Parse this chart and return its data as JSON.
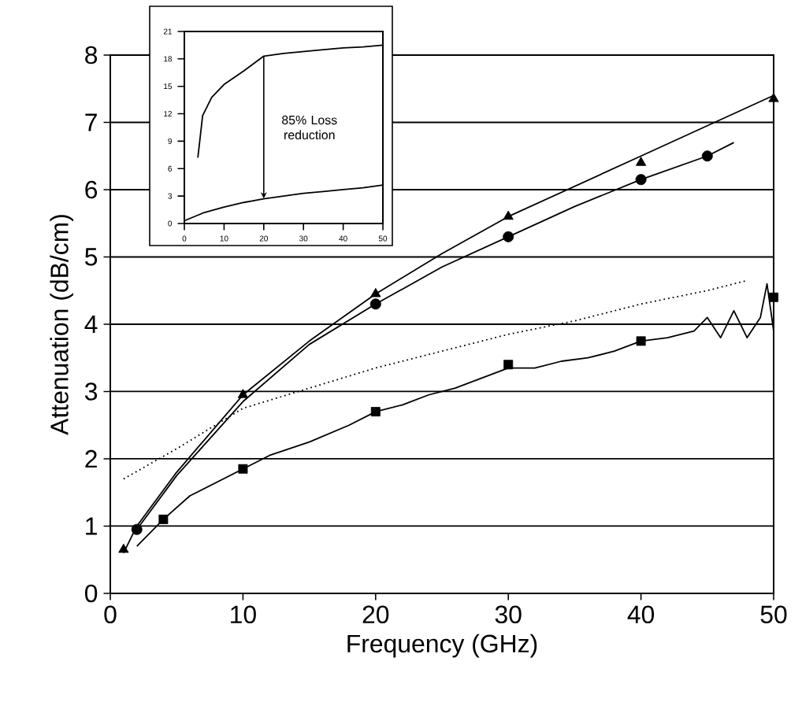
{
  "chart_data": [
    {
      "type": "line",
      "xlabel": "Frequency (GHz)",
      "ylabel": "Attenuation (dB/cm)",
      "xlim": [
        0,
        50
      ],
      "ylim": [
        0,
        8
      ],
      "xticks": [
        0,
        10,
        20,
        30,
        40,
        50
      ],
      "yticks": [
        0,
        1,
        2,
        3,
        4,
        5,
        6,
        7,
        8
      ],
      "grid": "y",
      "series": [
        {
          "type": "scatter",
          "marker": "triangle",
          "color": "#000000",
          "x": [
            1,
            10,
            20,
            30,
            40,
            50
          ],
          "values": [
            0.65,
            2.95,
            4.45,
            5.6,
            6.4,
            7.35
          ]
        },
        {
          "type": "scatter",
          "marker": "circle",
          "color": "#000000",
          "x": [
            2,
            20,
            30,
            40,
            45
          ],
          "values": [
            0.95,
            4.3,
            5.3,
            6.15,
            6.5
          ]
        },
        {
          "type": "scatter",
          "marker": "square",
          "color": "#000000",
          "x": [
            4,
            10,
            20,
            30,
            40,
            50
          ],
          "values": [
            1.1,
            1.85,
            2.7,
            3.4,
            3.75,
            4.4
          ]
        },
        {
          "marker": "none",
          "line_style": "solid",
          "color": "#000000",
          "x": [
            1,
            2,
            5,
            10,
            15,
            20,
            25,
            30,
            35,
            40,
            45,
            50
          ],
          "values": [
            0.6,
            1.0,
            1.8,
            2.95,
            3.75,
            4.45,
            5.05,
            5.6,
            6.05,
            6.5,
            6.95,
            7.4
          ]
        },
        {
          "marker": "none",
          "line_style": "solid",
          "color": "#000000",
          "x": [
            2,
            5,
            10,
            15,
            20,
            25,
            30,
            35,
            40,
            45,
            47
          ],
          "values": [
            0.95,
            1.75,
            2.85,
            3.7,
            4.3,
            4.85,
            5.3,
            5.75,
            6.15,
            6.5,
            6.7
          ]
        },
        {
          "marker": "none",
          "line_style": "solid",
          "color": "#000000",
          "x": [
            2,
            4,
            6,
            8,
            10,
            12,
            15,
            18,
            20,
            22,
            24,
            26,
            28,
            30,
            32,
            34,
            36,
            38,
            40,
            42,
            44,
            45,
            46,
            47,
            48,
            49,
            49.5,
            50
          ],
          "values": [
            0.7,
            1.1,
            1.45,
            1.65,
            1.85,
            2.05,
            2.25,
            2.5,
            2.7,
            2.8,
            2.95,
            3.05,
            3.2,
            3.35,
            3.35,
            3.45,
            3.5,
            3.6,
            3.75,
            3.8,
            3.9,
            4.1,
            3.8,
            4.2,
            3.8,
            4.1,
            4.6,
            3.9
          ]
        },
        {
          "marker": "none",
          "line_style": "dotted",
          "color": "#000000",
          "x": [
            1,
            5,
            10,
            15,
            20,
            25,
            30,
            35,
            40,
            45,
            48
          ],
          "values": [
            1.7,
            2.15,
            2.75,
            3.05,
            3.35,
            3.6,
            3.85,
            4.05,
            4.3,
            4.5,
            4.65
          ]
        }
      ]
    },
    {
      "type": "line",
      "xlim": [
        0,
        50
      ],
      "ylim": [
        0,
        21
      ],
      "xticks": [
        0,
        10,
        20,
        30,
        40,
        50
      ],
      "yticks": [
        0,
        3,
        6,
        9,
        12,
        15,
        18,
        21
      ],
      "annotations": [
        "85% Loss reduction"
      ],
      "series": [
        {
          "marker": "none",
          "line_style": "solid",
          "color": "#000000",
          "x": [
            3.4,
            4.6,
            6.9,
            10,
            15,
            20,
            25,
            30,
            35,
            40,
            45,
            50
          ],
          "values": [
            7.2,
            11.8,
            13.8,
            15.2,
            16.7,
            18.3,
            18.6,
            18.8,
            19.0,
            19.2,
            19.3,
            19.5
          ]
        },
        {
          "marker": "none",
          "line_style": "solid",
          "color": "#000000",
          "x": [
            0,
            5,
            10,
            15,
            20,
            25,
            30,
            35,
            40,
            45,
            50
          ],
          "values": [
            0.3,
            1.2,
            1.8,
            2.3,
            2.7,
            3.0,
            3.3,
            3.5,
            3.7,
            3.9,
            4.2
          ]
        }
      ]
    }
  ]
}
